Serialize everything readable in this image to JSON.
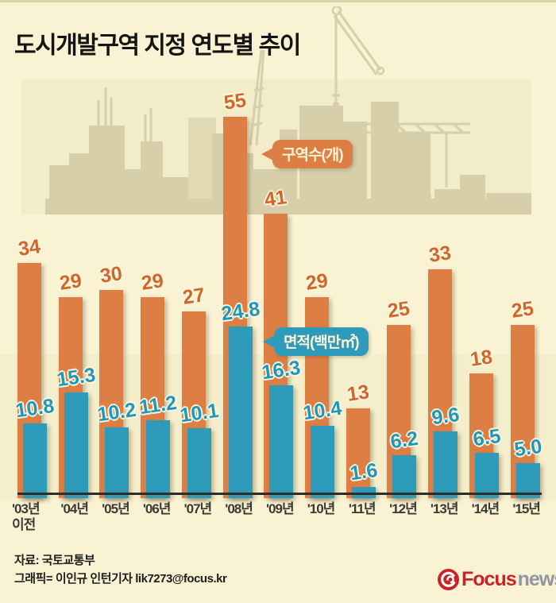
{
  "title": "도시개발구역 지정 연도별 추이",
  "chart_data": {
    "type": "bar",
    "categories": [
      "'03년\n이전",
      "'04년",
      "'05년",
      "'06년",
      "'07년",
      "'08년",
      "'09년",
      "'10년",
      "'11년",
      "'12년",
      "'13년",
      "'14년",
      "'15년"
    ],
    "series": [
      {
        "name": "구역수(개)",
        "color": "#dd7e45",
        "label_color": "#d0662a",
        "values": [
          34,
          29,
          30,
          29,
          27,
          55,
          41,
          29,
          13,
          25,
          33,
          18,
          25
        ],
        "labels": [
          "34",
          "29",
          "30",
          "29",
          "27",
          "55",
          "41",
          "29",
          "13",
          "25",
          "33",
          "18",
          "25"
        ]
      },
      {
        "name": "면적(백만㎡)",
        "color": "#2f9bba",
        "label_color": "#1f96bb",
        "values": [
          10.8,
          15.3,
          10.2,
          11.2,
          10.1,
          24.8,
          16.3,
          10.4,
          1.6,
          6.2,
          9.6,
          6.5,
          5.0
        ],
        "labels": [
          "10.8",
          "15.3",
          "10.2",
          "11.2",
          "10.1",
          "24.8",
          "16.3",
          "10.4",
          "1.6",
          "6.2",
          "9.6",
          "6.5",
          "5.0"
        ]
      }
    ],
    "ylim": [
      0,
      57
    ],
    "grid": false,
    "xlabel": "",
    "ylabel": "",
    "legend_position": "inline-callouts"
  },
  "callouts": {
    "count_label": "구역수(개)",
    "area_label": "면적(백만㎡)"
  },
  "footer": {
    "source": "자료: 국토교통부",
    "credit": "그래픽= 이인규 인턴기자 lik7273@focus.kr"
  },
  "logo": {
    "brand": "Focus",
    "suffix": "news"
  },
  "colors": {
    "background": "#f9f3d4",
    "band": "#f2ecc9",
    "silhouette": "#d6cfa9",
    "orange": "#dd7e45",
    "teal": "#2f9bba",
    "axis": "#2e2d28",
    "logo_red": "#cb2127",
    "logo_gray": "#8e95a3"
  }
}
